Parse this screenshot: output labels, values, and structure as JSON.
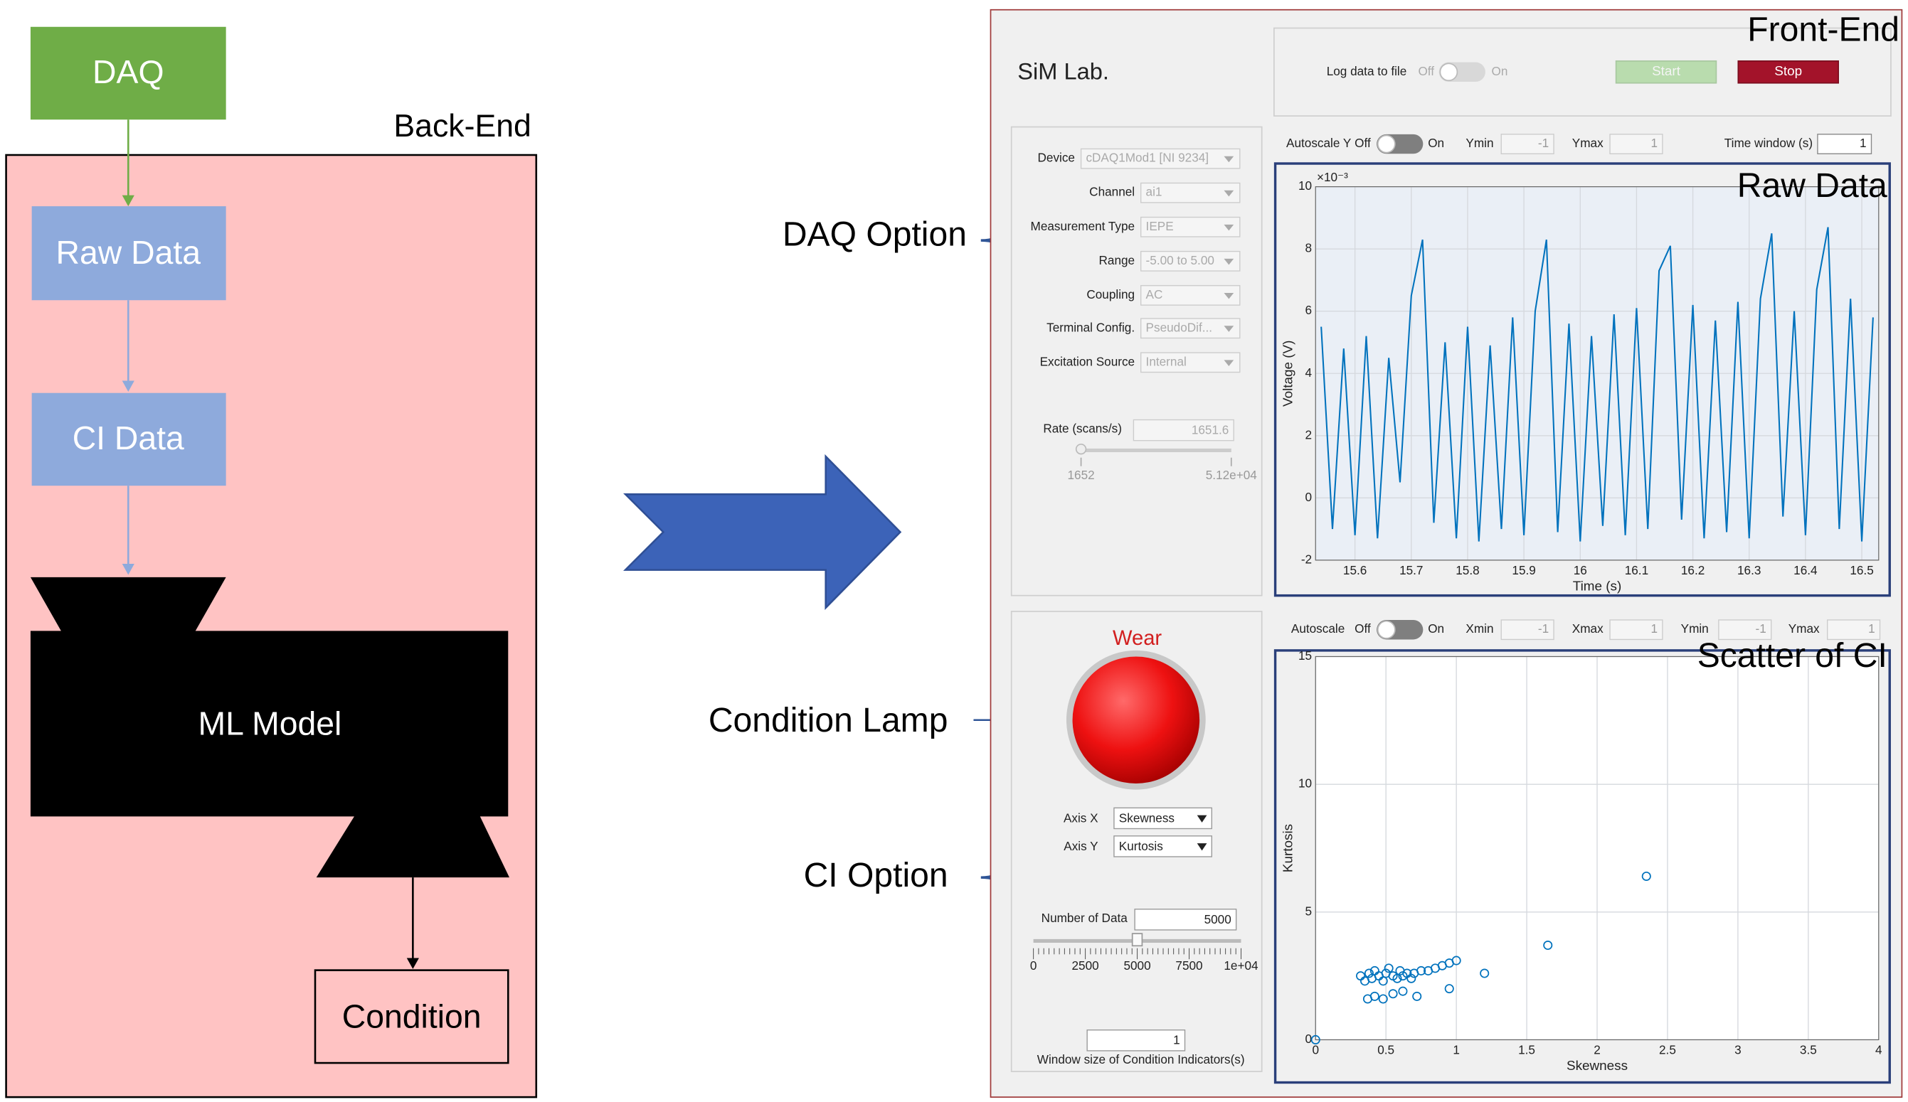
{
  "back_end": {
    "title": "Back-End",
    "nodes": [
      "DAQ",
      "Raw Data",
      "CI Data",
      "ML Model",
      "Condition"
    ]
  },
  "annotations": {
    "daq_option": "DAQ Option",
    "condition_lamp": "Condition Lamp",
    "ci_option": "CI Option"
  },
  "front_end": {
    "title": "Front-End",
    "app_name": "SiM Lab.",
    "log_label": "Log data to file",
    "off": "Off",
    "on": "On",
    "start": "Start",
    "stop": "Stop",
    "daq_fields": [
      [
        "Device",
        "cDAQ1Mod1 [NI 9234]"
      ],
      [
        "Channel",
        "ai1"
      ],
      [
        "Measurement Type",
        "IEPE"
      ],
      [
        "Range",
        "-5.00 to 5.00"
      ],
      [
        "Coupling",
        "AC"
      ],
      [
        "Terminal Config.",
        "PseudoDif..."
      ],
      [
        "Excitation Source",
        "Internal"
      ]
    ],
    "rate_label": "Rate (scans/s)",
    "rate_value": "1651.6",
    "rate_min": "1652",
    "rate_max": "5.12e+04",
    "lamp_label": "Wear",
    "axis_x": [
      "Axis X",
      "Skewness"
    ],
    "axis_y": [
      "Axis Y",
      "Kurtosis"
    ],
    "number_label": "Number of Data",
    "number_value": "5000",
    "number_ticks": [
      "0",
      "2500",
      "5000",
      "7500",
      "1e+04"
    ],
    "window_value": "1",
    "window_label": "Window size of Condition Indicators(s)",
    "raw_controls": {
      "autoscale": "Autoscale Y",
      "ymin_label": "Ymin",
      "ymin": "-1",
      "ymax_label": "Ymax",
      "ymax": "1",
      "window_label": "Time window (s)",
      "window": "1"
    },
    "scatter_controls": {
      "autoscale": "Autoscale",
      "xmin_label": "Xmin",
      "xmin": "-1",
      "xmax_label": "Xmax",
      "xmax": "1",
      "ymin_label": "Ymin",
      "ymin": "-1",
      "ymax_label": "Ymax",
      "ymax": "1"
    }
  },
  "chart_data": [
    {
      "type": "line",
      "title": "Raw Data",
      "x_label": "Time (s)",
      "y_label": "Voltage (V)",
      "y_exponent": "×10⁻³",
      "x": [
        15.54,
        15.56,
        15.58,
        15.6,
        15.62,
        15.64,
        15.66,
        15.68,
        15.7,
        15.72,
        15.74,
        15.76,
        15.78,
        15.8,
        15.82,
        15.84,
        15.86,
        15.88,
        15.9,
        15.92,
        15.94,
        15.96,
        15.98,
        16.0,
        16.02,
        16.04,
        16.06,
        16.08,
        16.1,
        16.12,
        16.14,
        16.16,
        16.18,
        16.2,
        16.22,
        16.24,
        16.26,
        16.28,
        16.3,
        16.32,
        16.34,
        16.36,
        16.38,
        16.4,
        16.42,
        16.44,
        16.46,
        16.48,
        16.5,
        16.52
      ],
      "values": [
        5.5,
        -1,
        4.8,
        -1.2,
        5.2,
        -1.3,
        4.5,
        0.5,
        6.5,
        8.3,
        -0.8,
        5.0,
        -1.3,
        5.5,
        -1.4,
        4.9,
        -1.0,
        5.8,
        -1.2,
        6.0,
        8.3,
        -1.1,
        5.6,
        -1.4,
        5.2,
        -0.9,
        5.9,
        -1.2,
        6.1,
        -1.0,
        7.3,
        8.1,
        -0.7,
        6.2,
        -1.3,
        5.7,
        -1.1,
        6.3,
        -1.3,
        6.4,
        8.5,
        -0.6,
        6.0,
        -1.2,
        6.7,
        8.7,
        -1.0,
        6.4,
        -1.4,
        5.8
      ],
      "color": "#0072bd",
      "xlim": [
        15.53,
        16.53
      ],
      "ylim": [
        -2,
        10
      ],
      "xticks": [
        15.6,
        15.7,
        15.8,
        15.9,
        16,
        16.1,
        16.2,
        16.3,
        16.4,
        16.5
      ],
      "yticks": [
        -2,
        0,
        2,
        4,
        6,
        8,
        10
      ],
      "grid": true
    },
    {
      "type": "scatter",
      "title": "Scatter of CI",
      "x_label": "Skewness",
      "y_label": "Kurtosis",
      "x": [
        0,
        0.32,
        0.35,
        0.38,
        0.4,
        0.42,
        0.45,
        0.48,
        0.5,
        0.52,
        0.55,
        0.58,
        0.6,
        0.62,
        0.65,
        0.68,
        0.7,
        0.75,
        0.8,
        0.85,
        0.9,
        0.95,
        1.0,
        0.37,
        0.42,
        0.48,
        0.55,
        0.62,
        0.72,
        0.95,
        1.2,
        1.65,
        2.35
      ],
      "values": [
        0,
        2.5,
        2.3,
        2.6,
        2.4,
        2.7,
        2.5,
        2.3,
        2.6,
        2.8,
        2.5,
        2.4,
        2.7,
        2.5,
        2.6,
        2.4,
        2.6,
        2.7,
        2.7,
        2.8,
        2.9,
        3.0,
        3.1,
        1.6,
        1.7,
        1.6,
        1.8,
        1.9,
        1.7,
        2.0,
        2.6,
        3.7,
        6.4
      ],
      "color": "#0072bd",
      "xlim": [
        0,
        4
      ],
      "ylim": [
        0,
        15
      ],
      "xticks": [
        0,
        0.5,
        1,
        1.5,
        2,
        2.5,
        3,
        3.5,
        4
      ],
      "yticks": [
        0,
        5,
        10,
        15
      ],
      "grid": true
    }
  ]
}
